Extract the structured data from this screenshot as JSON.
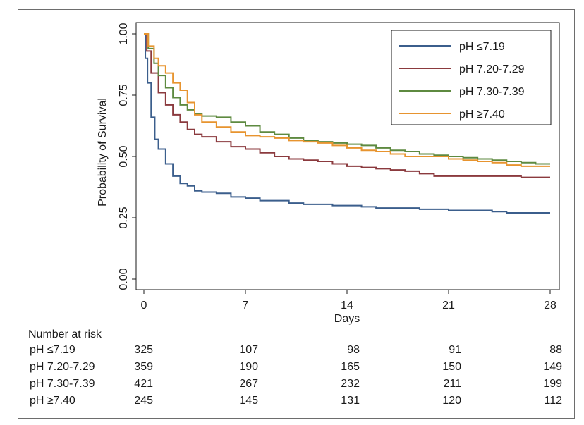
{
  "chart_data": {
    "type": "line",
    "title": "",
    "xlabel": "Days",
    "ylabel": "Probability of Survival",
    "xlim": [
      0,
      28
    ],
    "ylim": [
      0,
      1
    ],
    "x_ticks": [
      "0",
      "7",
      "14",
      "21",
      "28"
    ],
    "y_ticks": [
      "0.00",
      "0.25",
      "0.50",
      "0.75",
      "1.00"
    ],
    "legend_position": "top-right",
    "grid": false,
    "series": [
      {
        "name": "pH ≤7.19",
        "color": "#3b5e8c",
        "points": [
          [
            0,
            1.0
          ],
          [
            0.1,
            0.9
          ],
          [
            0.25,
            0.8
          ],
          [
            0.5,
            0.66
          ],
          [
            0.75,
            0.57
          ],
          [
            1,
            0.53
          ],
          [
            1.5,
            0.47
          ],
          [
            2,
            0.42
          ],
          [
            2.5,
            0.39
          ],
          [
            3,
            0.38
          ],
          [
            3.5,
            0.36
          ],
          [
            4,
            0.355
          ],
          [
            5,
            0.35
          ],
          [
            6,
            0.335
          ],
          [
            7,
            0.33
          ],
          [
            8,
            0.32
          ],
          [
            9,
            0.32
          ],
          [
            10,
            0.31
          ],
          [
            11,
            0.305
          ],
          [
            12,
            0.305
          ],
          [
            13,
            0.3
          ],
          [
            14,
            0.3
          ],
          [
            15,
            0.295
          ],
          [
            16,
            0.29
          ],
          [
            18,
            0.29
          ],
          [
            19,
            0.285
          ],
          [
            20,
            0.285
          ],
          [
            21,
            0.28
          ],
          [
            22,
            0.28
          ],
          [
            24,
            0.275
          ],
          [
            25,
            0.27
          ],
          [
            28,
            0.27
          ]
        ]
      },
      {
        "name": "pH 7.20-7.29",
        "color": "#8b3a3e",
        "points": [
          [
            0,
            1.0
          ],
          [
            0.2,
            0.93
          ],
          [
            0.5,
            0.84
          ],
          [
            1,
            0.76
          ],
          [
            1.5,
            0.71
          ],
          [
            2,
            0.67
          ],
          [
            2.5,
            0.64
          ],
          [
            3,
            0.61
          ],
          [
            3.5,
            0.59
          ],
          [
            4,
            0.58
          ],
          [
            5,
            0.56
          ],
          [
            6,
            0.54
          ],
          [
            7,
            0.53
          ],
          [
            8,
            0.515
          ],
          [
            9,
            0.5
          ],
          [
            10,
            0.49
          ],
          [
            11,
            0.485
          ],
          [
            12,
            0.48
          ],
          [
            13,
            0.47
          ],
          [
            14,
            0.46
          ],
          [
            15,
            0.455
          ],
          [
            16,
            0.45
          ],
          [
            17,
            0.445
          ],
          [
            18,
            0.44
          ],
          [
            19,
            0.43
          ],
          [
            20,
            0.42
          ],
          [
            21,
            0.42
          ],
          [
            24,
            0.42
          ],
          [
            26,
            0.415
          ],
          [
            28,
            0.415
          ]
        ]
      },
      {
        "name": "pH 7.30-7.39",
        "color": "#5e8a40",
        "points": [
          [
            0,
            1.0
          ],
          [
            0.3,
            0.94
          ],
          [
            0.7,
            0.88
          ],
          [
            1,
            0.83
          ],
          [
            1.5,
            0.78
          ],
          [
            2,
            0.74
          ],
          [
            2.5,
            0.71
          ],
          [
            3,
            0.69
          ],
          [
            3.5,
            0.675
          ],
          [
            4,
            0.665
          ],
          [
            5,
            0.66
          ],
          [
            6,
            0.64
          ],
          [
            7,
            0.625
          ],
          [
            8,
            0.6
          ],
          [
            9,
            0.59
          ],
          [
            10,
            0.575
          ],
          [
            11,
            0.565
          ],
          [
            12,
            0.56
          ],
          [
            13,
            0.555
          ],
          [
            14,
            0.55
          ],
          [
            15,
            0.545
          ],
          [
            16,
            0.535
          ],
          [
            17,
            0.525
          ],
          [
            18,
            0.52
          ],
          [
            19,
            0.51
          ],
          [
            20,
            0.505
          ],
          [
            21,
            0.5
          ],
          [
            22,
            0.495
          ],
          [
            23,
            0.49
          ],
          [
            24,
            0.485
          ],
          [
            25,
            0.48
          ],
          [
            26,
            0.475
          ],
          [
            27,
            0.47
          ],
          [
            28,
            0.47
          ]
        ]
      },
      {
        "name": "pH ≥7.40",
        "color": "#e7942f",
        "points": [
          [
            0,
            1.0
          ],
          [
            0.3,
            0.95
          ],
          [
            0.7,
            0.9
          ],
          [
            1,
            0.87
          ],
          [
            1.5,
            0.84
          ],
          [
            2,
            0.8
          ],
          [
            2.5,
            0.77
          ],
          [
            3,
            0.72
          ],
          [
            3.5,
            0.67
          ],
          [
            4,
            0.64
          ],
          [
            5,
            0.62
          ],
          [
            6,
            0.6
          ],
          [
            7,
            0.585
          ],
          [
            8,
            0.58
          ],
          [
            9,
            0.575
          ],
          [
            10,
            0.565
          ],
          [
            11,
            0.56
          ],
          [
            12,
            0.555
          ],
          [
            13,
            0.545
          ],
          [
            14,
            0.535
          ],
          [
            15,
            0.525
          ],
          [
            16,
            0.52
          ],
          [
            17,
            0.51
          ],
          [
            18,
            0.5
          ],
          [
            20,
            0.5
          ],
          [
            21,
            0.49
          ],
          [
            22,
            0.485
          ],
          [
            23,
            0.48
          ],
          [
            24,
            0.475
          ],
          [
            25,
            0.465
          ],
          [
            26,
            0.46
          ],
          [
            28,
            0.46
          ]
        ]
      }
    ]
  },
  "risk_table": {
    "title": "Number at risk",
    "rows": [
      {
        "label": "pH ≤7.19",
        "values": [
          "325",
          "107",
          "98",
          "91",
          "88"
        ]
      },
      {
        "label": "pH 7.20-7.29",
        "values": [
          "359",
          "190",
          "165",
          "150",
          "149"
        ]
      },
      {
        "label": "pH 7.30-7.39",
        "values": [
          "421",
          "267",
          "232",
          "211",
          "199"
        ]
      },
      {
        "label": "pH ≥7.40",
        "values": [
          "245",
          "145",
          "131",
          "120",
          "112"
        ]
      }
    ]
  }
}
